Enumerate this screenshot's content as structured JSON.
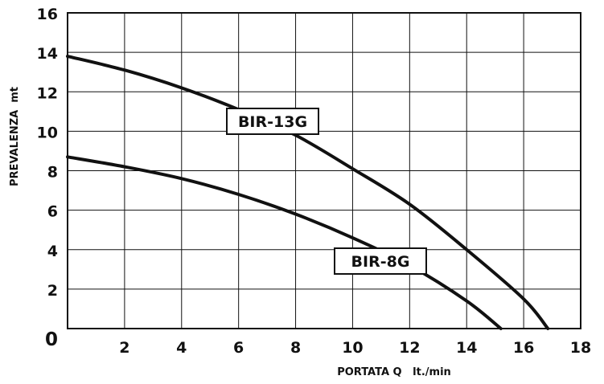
{
  "chart_data": {
    "type": "line",
    "xlabel": "PORTATA Q   lt./min",
    "ylabel": "PREVALENZA  mt",
    "xlim": [
      0,
      18
    ],
    "ylim": [
      0,
      16
    ],
    "x_ticks": [
      "2",
      "4",
      "6",
      "8",
      "10",
      "12",
      "14",
      "16",
      "18"
    ],
    "y_ticks": [
      "0",
      "2",
      "4",
      "6",
      "8",
      "10",
      "12",
      "14",
      "16"
    ],
    "grid": true,
    "colors": {
      "line": "#111111",
      "grid": "#111111",
      "background": "#ffffff"
    },
    "series": [
      {
        "name": "BIR-13G",
        "x": [
          0,
          2,
          4,
          6,
          8,
          10,
          12,
          14,
          16,
          16.85
        ],
        "y": [
          13.8,
          13.1,
          12.2,
          11.1,
          9.8,
          8.1,
          6.3,
          4.0,
          1.5,
          0
        ]
      },
      {
        "name": "BIR-8G",
        "x": [
          0,
          2,
          4,
          6,
          8,
          10,
          12,
          14,
          15.2
        ],
        "y": [
          8.7,
          8.2,
          7.6,
          6.8,
          5.8,
          4.6,
          3.2,
          1.4,
          0
        ]
      }
    ]
  }
}
